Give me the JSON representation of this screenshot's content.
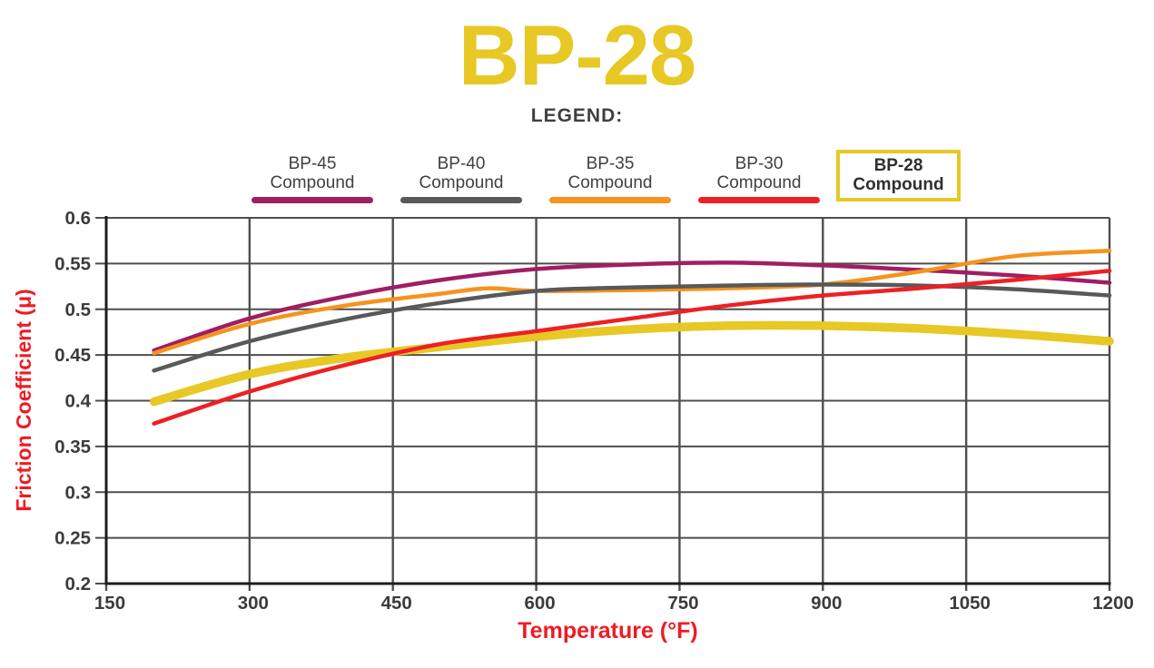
{
  "page": {
    "title": "BP-28",
    "legend_heading": "LEGEND:"
  },
  "colors": {
    "yellow": "#e7c825",
    "red": "#ed1c24",
    "dark_text": "#414042",
    "tick_label": "#3b3b3d",
    "grid": "#4e4e4f",
    "axis": "#1d1d1d"
  },
  "legend": {
    "items": [
      {
        "line1": "BP-45",
        "line2": "Compound",
        "color": "#a01e63",
        "boxed": false
      },
      {
        "line1": "BP-40",
        "line2": "Compound",
        "color": "#58595b",
        "boxed": false
      },
      {
        "line1": "BP-35",
        "line2": "Compound",
        "color": "#f5931e",
        "boxed": false
      },
      {
        "line1": "BP-30",
        "line2": "Compound",
        "color": "#ed2024",
        "boxed": false
      },
      {
        "line1": "BP-28",
        "line2": "Compound",
        "color": "#e7c825",
        "boxed": true
      }
    ]
  },
  "chart_data": {
    "type": "line",
    "title": "BP-28",
    "xlabel": "Temperature (°F)",
    "ylabel": "Friction Coefficient (μ)",
    "xlim": [
      150,
      1200
    ],
    "ylim": [
      0.2,
      0.6
    ],
    "xticks": [
      150,
      300,
      450,
      600,
      750,
      900,
      1050,
      1200
    ],
    "yticks": [
      0.2,
      0.25,
      0.3,
      0.35,
      0.4,
      0.45,
      0.5,
      0.55,
      0.6
    ],
    "ytick_labels": [
      "0.2",
      "0.25",
      "0.3",
      "0.35",
      "0.4",
      "0.45",
      "0.5",
      "0.55",
      "0.6"
    ],
    "xtick_labels": [
      "150",
      "300",
      "450",
      "600",
      "750",
      "900",
      "1050",
      "1200"
    ],
    "grid": true,
    "legend_position": "top",
    "series": [
      {
        "name": "BP-45 Compound",
        "color": "#a01e63",
        "stroke_width": 4.5,
        "z": 2,
        "points": [
          [
            200,
            0.455
          ],
          [
            300,
            0.49
          ],
          [
            400,
            0.514
          ],
          [
            500,
            0.532
          ],
          [
            600,
            0.544
          ],
          [
            700,
            0.549
          ],
          [
            800,
            0.551
          ],
          [
            900,
            0.548
          ],
          [
            1000,
            0.543
          ],
          [
            1100,
            0.537
          ],
          [
            1200,
            0.529
          ]
        ]
      },
      {
        "name": "BP-40 Compound",
        "color": "#58595b",
        "stroke_width": 4.5,
        "z": 4,
        "points": [
          [
            200,
            0.433
          ],
          [
            300,
            0.465
          ],
          [
            400,
            0.489
          ],
          [
            500,
            0.507
          ],
          [
            600,
            0.52
          ],
          [
            700,
            0.524
          ],
          [
            800,
            0.526
          ],
          [
            900,
            0.527
          ],
          [
            1000,
            0.526
          ],
          [
            1100,
            0.522
          ],
          [
            1200,
            0.515
          ]
        ]
      },
      {
        "name": "BP-35 Compound",
        "color": "#f5931e",
        "stroke_width": 4.5,
        "z": 3,
        "points": [
          [
            200,
            0.452
          ],
          [
            300,
            0.484
          ],
          [
            400,
            0.504
          ],
          [
            500,
            0.517
          ],
          [
            550,
            0.523
          ],
          [
            600,
            0.52
          ],
          [
            700,
            0.521
          ],
          [
            800,
            0.523
          ],
          [
            900,
            0.527
          ],
          [
            1000,
            0.541
          ],
          [
            1100,
            0.558
          ],
          [
            1200,
            0.564
          ]
        ]
      },
      {
        "name": "BP-30 Compound",
        "color": "#ed2024",
        "stroke_width": 4.5,
        "z": 5,
        "points": [
          [
            200,
            0.375
          ],
          [
            300,
            0.41
          ],
          [
            400,
            0.439
          ],
          [
            500,
            0.462
          ],
          [
            600,
            0.476
          ],
          [
            700,
            0.49
          ],
          [
            800,
            0.504
          ],
          [
            900,
            0.515
          ],
          [
            1000,
            0.523
          ],
          [
            1100,
            0.532
          ],
          [
            1200,
            0.542
          ]
        ]
      },
      {
        "name": "BP-28 Compound",
        "color": "#e7c825",
        "stroke_width": 9.5,
        "z": 1,
        "points": [
          [
            200,
            0.399
          ],
          [
            300,
            0.429
          ],
          [
            400,
            0.447
          ],
          [
            500,
            0.459
          ],
          [
            600,
            0.47
          ],
          [
            700,
            0.478
          ],
          [
            800,
            0.482
          ],
          [
            900,
            0.482
          ],
          [
            1000,
            0.479
          ],
          [
            1100,
            0.473
          ],
          [
            1200,
            0.465
          ]
        ]
      }
    ]
  }
}
